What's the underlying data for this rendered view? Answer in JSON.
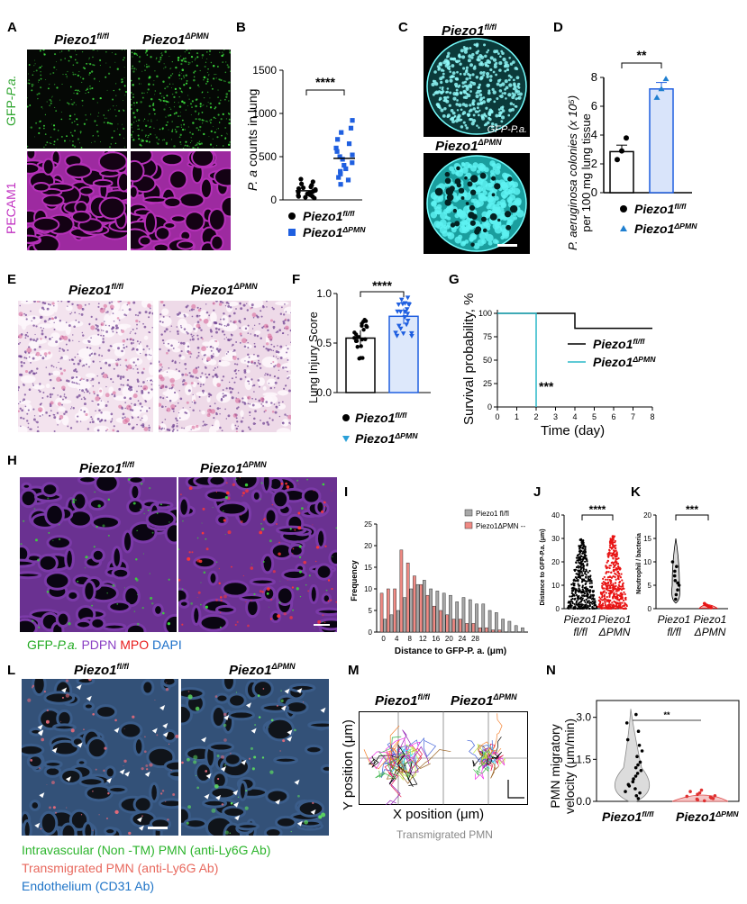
{
  "panels": {
    "A": "A",
    "B": "B",
    "C": "C",
    "D": "D",
    "E": "E",
    "F": "F",
    "G": "G",
    "H": "H",
    "I": "I",
    "J": "J",
    "K": "K",
    "L": "L",
    "M": "M",
    "N": "N"
  },
  "genotype": {
    "flfl_base": "Piezo1",
    "flfl_sup": "fl/fl",
    "pmn_base": "Piezo1",
    "pmn_sup": "ΔPMN"
  },
  "panelA": {
    "row1_label_prefix": "GFP-",
    "row1_label_italic": "P.a.",
    "row2_label": "PECAM1"
  },
  "panelB": {
    "ylabel_italic": "P. a",
    "ylabel_rest": " counts in lung",
    "sig": "****"
  },
  "panelC": {
    "gfp_label": "GFP-P.a."
  },
  "panelD": {
    "ylabel_line1": "P. aeruginosa colonies (x 10⁵)",
    "ylabel_line2": "per 100 mg lung tissue",
    "sig": "**"
  },
  "panelF": {
    "ylabel": "Lung Injury Score",
    "sig": "****"
  },
  "panelG": {
    "ylabel": "Survival probability, %",
    "xlabel": "Time (day)",
    "sig": "***"
  },
  "panelH": {
    "legend": [
      {
        "text": "GFP-",
        "color": "#22aa22"
      },
      {
        "text": "P.a.",
        "color": "#22aa22",
        "italic": true
      },
      {
        "text": " PDPN",
        "color": "#8a3fc4"
      },
      {
        "text": " MPO",
        "color": "#e81c1c"
      },
      {
        "text": " DAPI",
        "color": "#1b6fc9"
      }
    ]
  },
  "panelI": {
    "ylabel": "Frequency",
    "xlabel": "Distance to GFP-P. a. (μm)",
    "legend1": "Piezo1 fl/fl",
    "legend2": "Piezo1ΔPMN --"
  },
  "panelJ": {
    "ylabel": "Distance to GFP-P.a. (μm)",
    "sig": "****",
    "x1a": "Piezo1",
    "x1b": "fl/fl",
    "x2a": "Piezo1",
    "x2b": "ΔPMN"
  },
  "panelK": {
    "ylabel": "Neutrophil / bacteria",
    "sig": "***",
    "x1a": "Piezo1",
    "x1b": "fl/fl",
    "x2a": "Piezo1",
    "x2b": "ΔPMN"
  },
  "panelL": {
    "legend": [
      {
        "text": "Intravascular (Non -TM) PMN (anti-Ly6G Ab)",
        "color": "#2db52d"
      },
      {
        "text": "Transmigrated PMN (anti-Ly6G Ab)",
        "color": "#e8685d"
      },
      {
        "text": "Endothelium (CD31 Ab)",
        "color": "#1f74c7"
      }
    ]
  },
  "panelM": {
    "ylabel": "Y position (μm)",
    "xlabel": "X position (μm)",
    "caption": "Transmigrated PMN"
  },
  "panelN": {
    "ylabel_line1": "PMN migratory",
    "ylabel_line2": "velocity (μm/min)",
    "sig": "**"
  },
  "chart_data": [
    {
      "id": "B",
      "type": "scatter",
      "ylabel": "P. a counts in lung",
      "ylim": [
        0,
        1500
      ],
      "yticks": [
        0,
        500,
        1000,
        1500
      ],
      "series": [
        {
          "name": "Piezo1fl/fl",
          "mean": 105,
          "values": [
            30,
            40,
            50,
            60,
            70,
            80,
            90,
            100,
            110,
            120,
            130,
            140,
            150,
            170,
            185,
            210,
            240,
            40,
            60,
            20
          ]
        },
        {
          "name": "Piezo1ΔPMN",
          "mean": 480,
          "values": [
            180,
            230,
            260,
            300,
            330,
            360,
            400,
            430,
            470,
            500,
            520,
            560,
            600,
            650,
            700,
            780,
            830,
            920
          ]
        }
      ]
    },
    {
      "id": "D",
      "type": "bar",
      "ylabel": "P. aeruginosa colonies (x 10⁵) per 100 mg lung tissue",
      "ylim": [
        0,
        8
      ],
      "yticks": [
        0,
        2,
        4,
        6,
        8
      ],
      "categories": [
        "Piezo1fl/fl",
        "Piezo1ΔPMN"
      ],
      "values": [
        2.85,
        7.2
      ],
      "errors": [
        0.45,
        0.45
      ],
      "points": [
        [
          2.3,
          2.9,
          3.8
        ],
        [
          6.6,
          7.2,
          7.9
        ]
      ]
    },
    {
      "id": "F",
      "type": "bar",
      "ylabel": "Lung Injury Score",
      "ylim": [
        0,
        1.0
      ],
      "yticks": [
        0,
        0.5,
        1.0
      ],
      "categories": [
        "Piezo1fl/fl",
        "Piezo1ΔPMN"
      ],
      "values": [
        0.55,
        0.77
      ],
      "errors": [
        0.08,
        0.08
      ]
    },
    {
      "id": "G",
      "type": "line",
      "ylabel": "Survival probability, %",
      "xlabel": "Time (day)",
      "xlim": [
        0,
        8
      ],
      "ylim": [
        0,
        100
      ],
      "xticks": [
        0,
        1,
        2,
        3,
        4,
        5,
        6,
        7,
        8
      ],
      "yticks": [
        0,
        25,
        50,
        75,
        100
      ],
      "series": [
        {
          "name": "Piezo1fl/fl",
          "points": [
            [
              0,
              100
            ],
            [
              4,
              100
            ],
            [
              4,
              84
            ],
            [
              8,
              84
            ]
          ]
        },
        {
          "name": "Piezo1ΔPMN",
          "points": [
            [
              0,
              100
            ],
            [
              2,
              100
            ],
            [
              2,
              0
            ]
          ]
        }
      ]
    },
    {
      "id": "I",
      "type": "bar",
      "ylabel": "Frequency",
      "xlabel": "Distance to GFP-P. a. (μm)",
      "ylim": [
        0,
        25
      ],
      "yticks": [
        0,
        5,
        10,
        15,
        20,
        25
      ],
      "xticks": [
        0,
        4,
        8,
        12,
        16,
        20,
        24,
        28
      ],
      "series": [
        {
          "name": "Piezo1 fl/fl",
          "values": [
            3,
            4,
            5,
            8,
            10,
            11,
            12,
            10,
            9.5,
            9,
            8.5,
            7,
            8,
            7.5,
            6.5,
            6.5,
            5,
            4.5,
            3,
            2.5,
            1.5,
            1
          ]
        },
        {
          "name": "Piezo1ΔPMN --",
          "values": [
            9,
            10,
            10,
            19,
            16,
            13,
            11,
            8.5,
            6,
            5,
            4,
            3,
            3,
            2,
            2,
            1,
            1,
            0.5,
            0.5,
            0,
            0,
            0
          ]
        }
      ]
    },
    {
      "id": "J",
      "type": "scatter",
      "ylabel": "Distance to GFP-P.a. (μm)",
      "ylim": [
        0,
        40
      ],
      "yticks": [
        0,
        10,
        20,
        30,
        40
      ],
      "categories": [
        "Piezo1 fl/fl",
        "Piezo1 ΔPMN"
      ]
    },
    {
      "id": "K",
      "type": "scatter",
      "ylabel": "Neutrophil / bacteria",
      "ylim": [
        0,
        20
      ],
      "yticks": [
        0,
        5,
        10,
        15,
        20
      ],
      "categories": [
        "Piezo1 fl/fl",
        "Piezo1 ΔPMN"
      ],
      "series": [
        {
          "values": [
            2,
            3,
            4,
            5,
            5.5,
            6,
            7,
            8,
            9,
            10
          ]
        },
        {
          "values": [
            0.2,
            0.3,
            0.5,
            0.7,
            0.9,
            1.1
          ]
        }
      ]
    },
    {
      "id": "N",
      "type": "scatter",
      "ylabel": "PMN migratory velocity (μm/min)",
      "ylim": [
        0,
        3.6
      ],
      "yticks": [
        0.0,
        1.5,
        3.0
      ],
      "categories": [
        "Piezo1fl/fl",
        "Piezo1ΔPMN"
      ],
      "series": [
        {
          "values": [
            0.1,
            0.2,
            0.3,
            0.35,
            0.45,
            0.55,
            0.6,
            0.7,
            0.8,
            0.9,
            1.0,
            1.1,
            1.2,
            1.3,
            1.4,
            1.6,
            1.8,
            2.0,
            2.2,
            2.5,
            2.8,
            3.1
          ]
        },
        {
          "values": [
            0.02,
            0.05,
            0.08,
            0.1,
            0.12,
            0.15,
            0.18,
            0.2,
            0.25,
            0.3,
            0.35,
            0.4
          ]
        }
      ]
    }
  ]
}
